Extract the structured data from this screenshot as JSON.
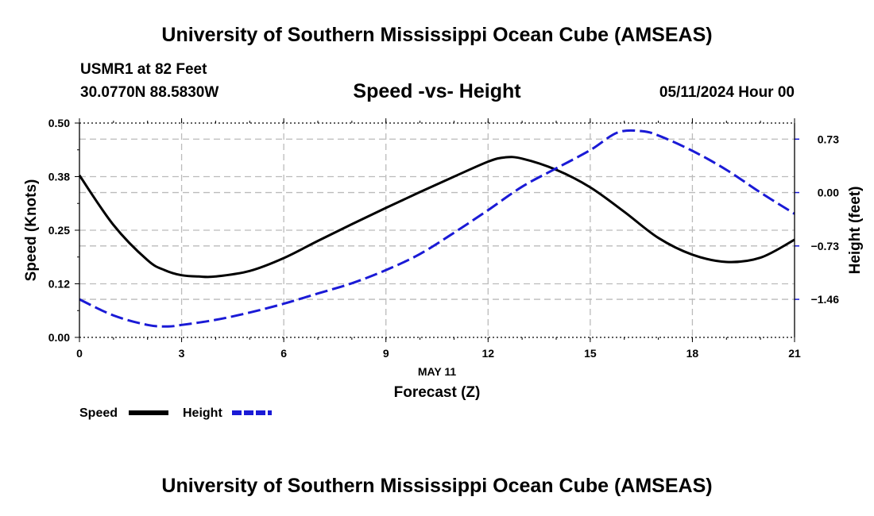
{
  "header": {
    "title": "University of Southern Mississippi Ocean Cube (AMSEAS)",
    "station": "USMR1 at 82 Feet",
    "coordinates": "30.0770N  88.5830W",
    "subtitle": "Speed -vs- Height",
    "datetime": "05/11/2024 Hour 00"
  },
  "footer": {
    "title": "University of Southern Mississippi Ocean Cube (AMSEAS)"
  },
  "chart_data": {
    "type": "line",
    "title": "Speed -vs- Height",
    "xlabel": "Forecast (Z)",
    "xdate": "MAY 11",
    "ylabel": "Speed (Knots)",
    "y2label": "Height (feet)",
    "xlim": [
      0,
      21
    ],
    "ylim": [
      0,
      0.5
    ],
    "y2lim": [
      -1.98,
      0.95
    ],
    "xticks": [
      0,
      3,
      6,
      9,
      12,
      15,
      18,
      21
    ],
    "xtick_labels": [
      "0",
      "3",
      "6",
      "9",
      "12",
      "15",
      "18",
      "21"
    ],
    "yticks": [
      0,
      0.125,
      0.25,
      0.375,
      0.5
    ],
    "ytick_labels": [
      "0.00",
      "0.12",
      "0.25",
      "0.38",
      "0.50"
    ],
    "y2ticks": [
      0.73,
      0,
      -0.73,
      -1.46
    ],
    "y2tick_labels": [
      "0.73",
      "0.00",
      "−0.73",
      "−1.46"
    ],
    "grid": true,
    "legend": {
      "position": "bottom-left",
      "speed_label": "Speed",
      "height_label": "Height"
    },
    "series": [
      {
        "name": "Speed",
        "axis": "left",
        "color": "#000000",
        "style": "solid",
        "x": [
          0,
          1,
          2,
          2.5,
          3,
          3.5,
          4,
          5,
          6,
          7,
          8,
          9,
          10,
          11,
          12,
          12.5,
          13,
          14,
          15,
          16,
          17,
          18,
          19,
          20,
          21
        ],
        "values": [
          0.378,
          0.262,
          0.18,
          0.157,
          0.145,
          0.142,
          0.142,
          0.155,
          0.185,
          0.225,
          0.264,
          0.302,
          0.339,
          0.375,
          0.41,
          0.42,
          0.417,
          0.391,
          0.35,
          0.293,
          0.232,
          0.193,
          0.176,
          0.186,
          0.228
        ]
      },
      {
        "name": "Height",
        "axis": "right",
        "color": "#1a1ad6",
        "style": "dashed",
        "x": [
          0,
          1,
          2,
          2.6,
          3,
          4,
          5,
          6,
          7,
          8,
          9,
          10,
          11,
          12,
          13,
          14,
          15,
          15.8,
          16.5,
          17,
          18,
          19,
          20,
          21
        ],
        "values": [
          -1.46,
          -1.68,
          -1.81,
          -1.83,
          -1.81,
          -1.74,
          -1.64,
          -1.52,
          -1.38,
          -1.24,
          -1.06,
          -0.84,
          -0.55,
          -0.24,
          0.08,
          0.33,
          0.58,
          0.82,
          0.84,
          0.78,
          0.57,
          0.31,
          0.0,
          -0.29
        ]
      }
    ]
  }
}
